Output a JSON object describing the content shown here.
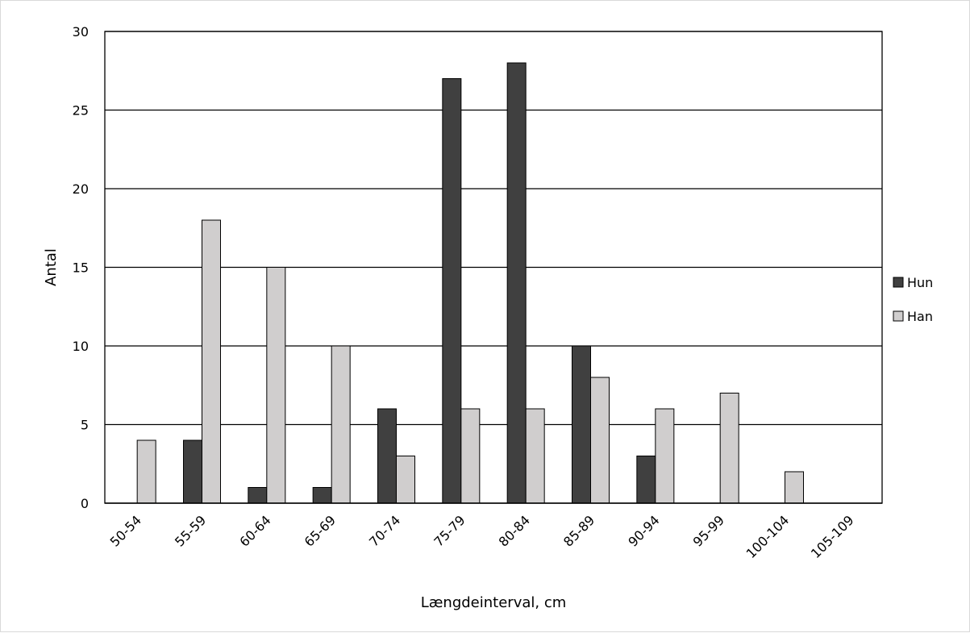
{
  "chart_data": {
    "type": "bar",
    "title": "",
    "xlabel": "Længdeinterval, cm",
    "ylabel": "Antal",
    "ylim": [
      0,
      30
    ],
    "yticks": [
      0,
      5,
      10,
      15,
      20,
      25,
      30
    ],
    "grid": true,
    "legend_position": "right",
    "categories": [
      "50-54",
      "55-59",
      "60-64",
      "65-69",
      "70-74",
      "75-79",
      "80-84",
      "85-89",
      "90-94",
      "95-99",
      "100-104",
      "105-109"
    ],
    "series": [
      {
        "name": "Hun",
        "color": "#404040",
        "values": [
          0,
          4,
          1,
          1,
          6,
          27,
          28,
          10,
          3,
          0,
          0,
          0
        ]
      },
      {
        "name": "Han",
        "color": "#d0cece",
        "values": [
          4,
          18,
          15,
          10,
          3,
          6,
          6,
          8,
          6,
          7,
          2,
          0
        ]
      }
    ]
  }
}
